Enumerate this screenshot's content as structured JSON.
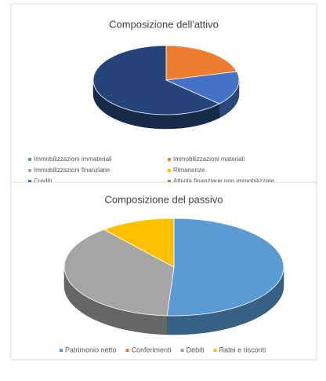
{
  "chart_data": [
    {
      "type": "pie",
      "title": "Composizione dell'attivo",
      "categories": [
        "Immobilizzazioni immateriali",
        "Immobilizzazioni materiali",
        "Immobilizzazioni finanziarie",
        "Rimanenze",
        "Crediti",
        "Attività finanziarie non immobilizzate",
        null
      ],
      "values": [
        0,
        21,
        0,
        0,
        16,
        0,
        63
      ],
      "colors": [
        "#5b9bd5",
        "#ed7d31",
        "#a5a5a5",
        "#ffc000",
        "#4472c4",
        "#70ad47",
        "#264478"
      ]
    },
    {
      "type": "pie",
      "title": "Composizione del passivo",
      "categories": [
        "Patrimonio netto",
        "Conferimenti",
        "Debiti",
        "Ratei e risconti"
      ],
      "values": [
        51,
        0,
        38,
        11
      ],
      "colors": [
        "#5b9bd5",
        "#ed7d31",
        "#a5a5a5",
        "#ffc000"
      ]
    }
  ]
}
